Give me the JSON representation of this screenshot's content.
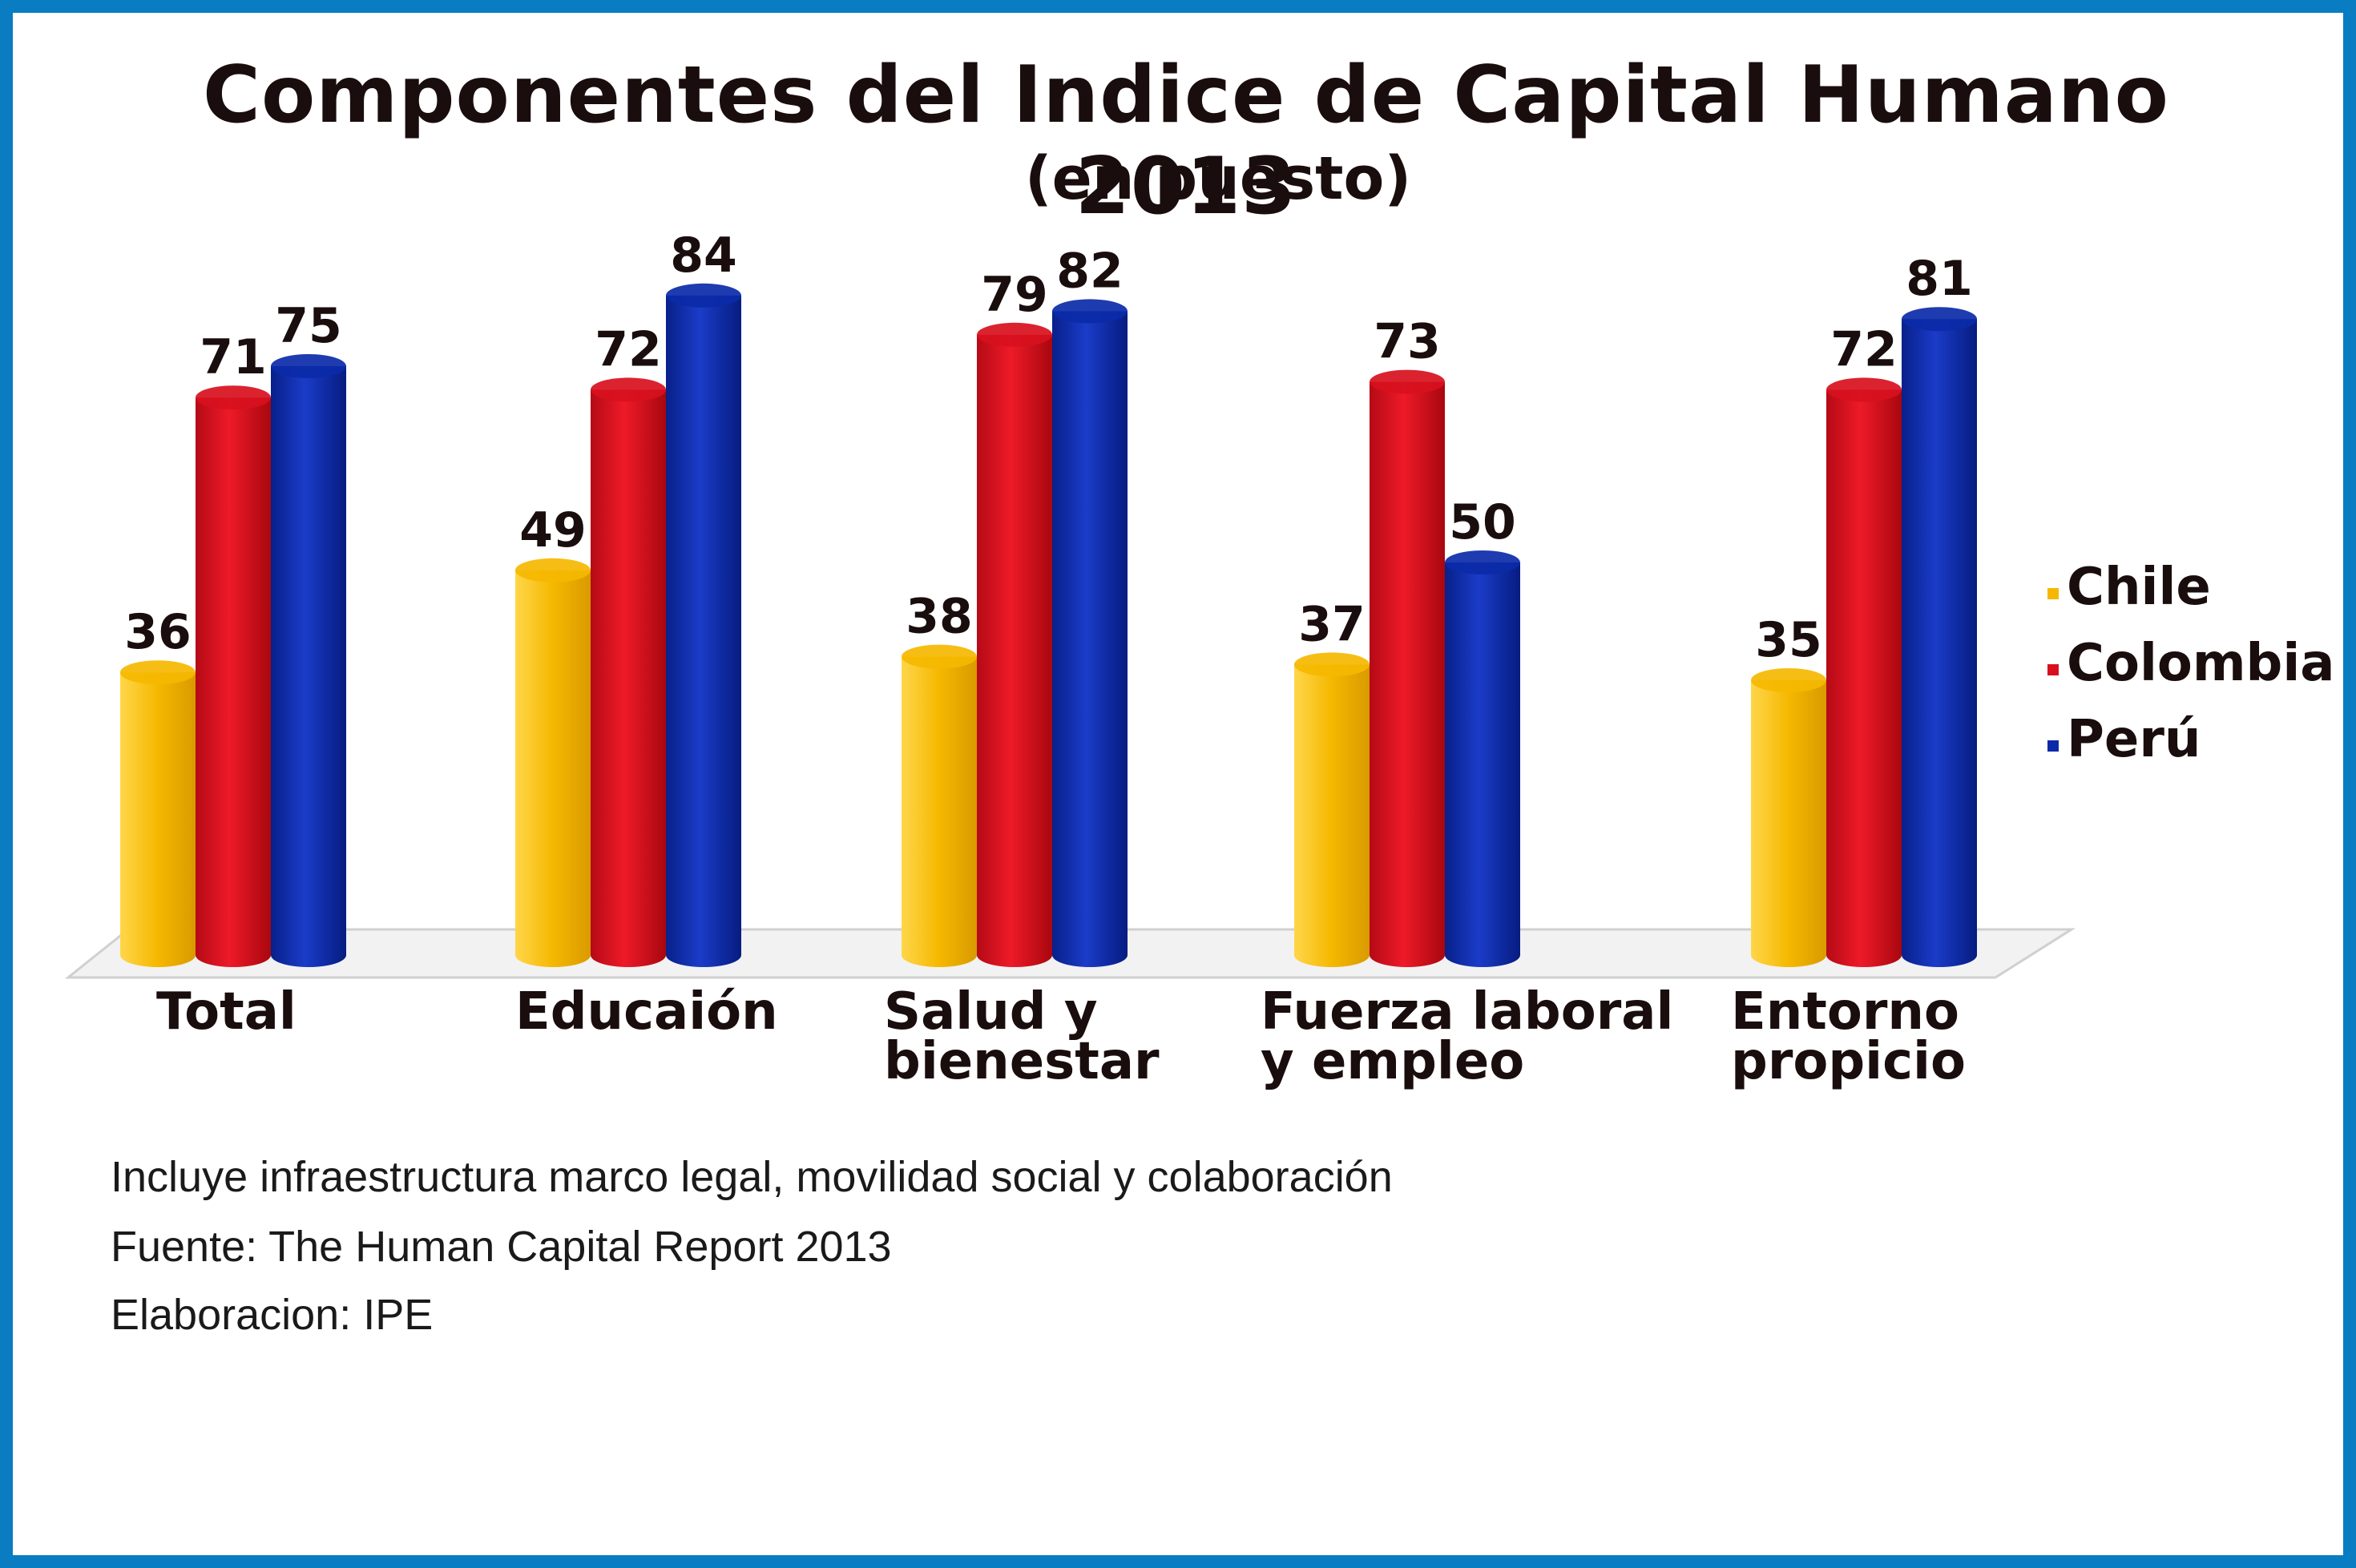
{
  "chart_data": {
    "type": "bar",
    "title": "Componentes del Indice de Capital Humano 2013",
    "subtitle": "(en puesto)",
    "categories": [
      "Total",
      "Educaión",
      "Salud y bienestar",
      "Fuerza laboral y empleo",
      "Entorno propicio"
    ],
    "category_lines": [
      [
        "Total"
      ],
      [
        "Educaión"
      ],
      [
        "Salud y",
        "bienestar"
      ],
      [
        "Fuerza laboral",
        "y empleo"
      ],
      [
        "Entorno",
        "propicio"
      ]
    ],
    "series": [
      {
        "name": "Chile",
        "color": "#f5b800",
        "values": [
          36,
          49,
          38,
          37,
          35
        ]
      },
      {
        "name": "Colombia",
        "color": "#d8101e",
        "values": [
          71,
          72,
          79,
          73,
          72
        ]
      },
      {
        "name": "Perú",
        "color": "#0b2aa8",
        "values": [
          75,
          84,
          82,
          50,
          81
        ]
      }
    ],
    "ylim": [
      0,
      100
    ],
    "grid": false,
    "legend": "right"
  },
  "footnotes": [
    "Incluye infraestructura marco legal, movilidad social y colaboración",
    "Fuente: The Human Capital Report 2013",
    "Elaboracion: IPE"
  ]
}
